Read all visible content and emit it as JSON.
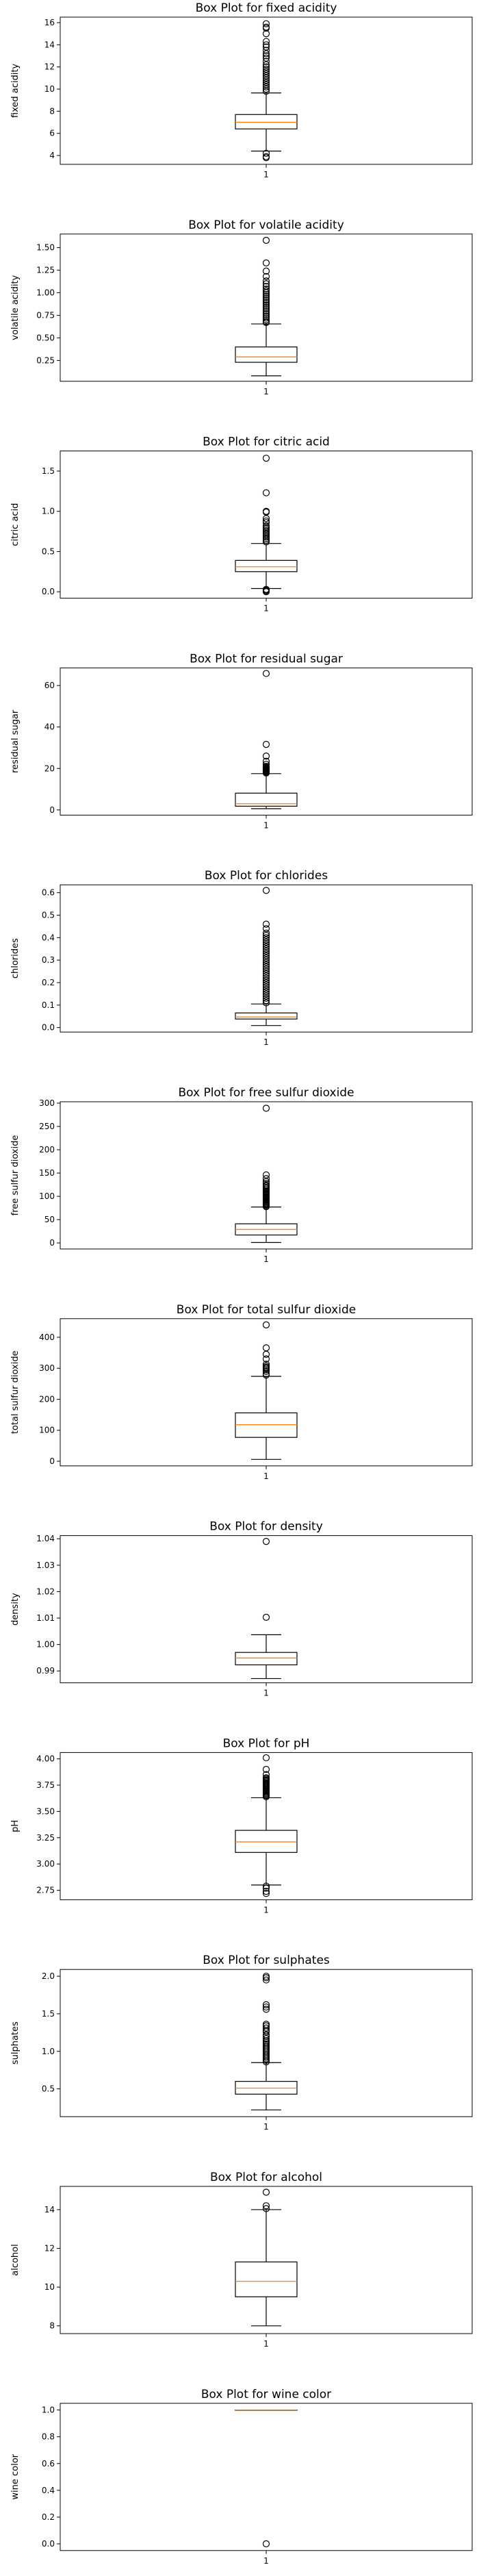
{
  "chart_data": [
    {
      "type": "box",
      "title": "Box Plot for fixed acidity",
      "ylabel": "fixed acidity",
      "xtick": "1",
      "ylim": [
        3.2,
        16.5
      ],
      "yticks": [
        4,
        6,
        8,
        10,
        12,
        14,
        16
      ],
      "yticklabels": [
        "4",
        "6",
        "8",
        "10",
        "12",
        "14",
        "16"
      ],
      "whisker_low": 4.4,
      "q1": 6.4,
      "median": 7.0,
      "q3": 7.7,
      "whisker_high": 9.65,
      "outliers": [
        3.8,
        3.9,
        4.2,
        9.8,
        10.0,
        10.2,
        10.4,
        10.6,
        10.8,
        11.0,
        11.2,
        11.4,
        11.6,
        11.8,
        12.0,
        12.2,
        12.5,
        12.8,
        13.0,
        13.2,
        13.5,
        13.8,
        14.0,
        14.3,
        15.0,
        15.5,
        15.6,
        15.9
      ]
    },
    {
      "type": "box",
      "title": "Box Plot for volatile acidity",
      "ylabel": "volatile acidity",
      "xtick": "1",
      "ylim": [
        0.02,
        1.65
      ],
      "yticks": [
        0.25,
        0.5,
        0.75,
        1.0,
        1.25,
        1.5
      ],
      "yticklabels": [
        "0.25",
        "0.50",
        "0.75",
        "1.00",
        "1.25",
        "1.50"
      ],
      "whisker_low": 0.08,
      "q1": 0.23,
      "median": 0.29,
      "q3": 0.4,
      "whisker_high": 0.655,
      "outliers": [
        0.67,
        0.68,
        0.7,
        0.72,
        0.74,
        0.76,
        0.78,
        0.8,
        0.82,
        0.84,
        0.86,
        0.88,
        0.9,
        0.92,
        0.94,
        0.96,
        0.98,
        1.0,
        1.02,
        1.04,
        1.07,
        1.1,
        1.13,
        1.18,
        1.24,
        1.33,
        1.58
      ]
    },
    {
      "type": "box",
      "title": "Box Plot for citric acid",
      "ylabel": "citric acid",
      "xtick": "1",
      "ylim": [
        -0.08,
        1.75
      ],
      "yticks": [
        0.0,
        0.5,
        1.0,
        1.5
      ],
      "yticklabels": [
        "0.0",
        "0.5",
        "1.0",
        "1.5"
      ],
      "whisker_low": 0.04,
      "q1": 0.25,
      "median": 0.31,
      "q3": 0.39,
      "whisker_high": 0.6,
      "outliers": [
        0.0,
        0.01,
        0.02,
        0.03,
        0.62,
        0.64,
        0.66,
        0.68,
        0.7,
        0.72,
        0.74,
        0.76,
        0.78,
        0.8,
        0.82,
        0.86,
        0.88,
        0.91,
        0.99,
        1.0,
        1.23,
        1.66
      ]
    },
    {
      "type": "box",
      "title": "Box Plot for residual sugar",
      "ylabel": "residual sugar",
      "xtick": "1",
      "ylim": [
        -2.5,
        68.5
      ],
      "yticks": [
        0,
        20,
        40,
        60
      ],
      "yticklabels": [
        "0",
        "20",
        "40",
        "60"
      ],
      "whisker_low": 0.6,
      "q1": 1.8,
      "median": 3.0,
      "q3": 8.1,
      "whisker_high": 17.5,
      "outliers": [
        17.8,
        18.0,
        18.2,
        18.5,
        18.8,
        19.0,
        19.3,
        19.5,
        19.8,
        20.0,
        20.3,
        20.7,
        21.0,
        22.0,
        23.5,
        26.0,
        31.6,
        65.8
      ]
    },
    {
      "type": "box",
      "title": "Box Plot for chlorides",
      "ylabel": "chlorides",
      "xtick": "1",
      "ylim": [
        -0.02,
        0.635
      ],
      "yticks": [
        0.0,
        0.1,
        0.2,
        0.3,
        0.4,
        0.5,
        0.6
      ],
      "yticklabels": [
        "0.0",
        "0.1",
        "0.2",
        "0.3",
        "0.4",
        "0.5",
        "0.6"
      ],
      "whisker_low": 0.009,
      "q1": 0.038,
      "median": 0.047,
      "q3": 0.065,
      "whisker_high": 0.105,
      "outliers": [
        0.11,
        0.12,
        0.13,
        0.14,
        0.15,
        0.16,
        0.17,
        0.18,
        0.19,
        0.2,
        0.21,
        0.22,
        0.23,
        0.24,
        0.25,
        0.26,
        0.27,
        0.28,
        0.29,
        0.3,
        0.31,
        0.32,
        0.33,
        0.34,
        0.35,
        0.36,
        0.37,
        0.38,
        0.39,
        0.4,
        0.41,
        0.42,
        0.44,
        0.46,
        0.61
      ]
    },
    {
      "type": "box",
      "title": "Box Plot for free sulfur dioxide",
      "ylabel": "free sulfur dioxide",
      "xtick": "1",
      "ylim": [
        -13,
        303
      ],
      "yticks": [
        0,
        50,
        100,
        150,
        200,
        250,
        300
      ],
      "yticklabels": [
        "0",
        "50",
        "100",
        "150",
        "200",
        "250",
        "300"
      ],
      "whisker_low": 1,
      "q1": 17,
      "median": 29,
      "q3": 41,
      "whisker_high": 77,
      "outliers": [
        78,
        80,
        82,
        84,
        86,
        88,
        90,
        92,
        94,
        96,
        98,
        100,
        102,
        104,
        106,
        108,
        110,
        112,
        115,
        118,
        122,
        124,
        128,
        132,
        138,
        146,
        289
      ]
    },
    {
      "type": "box",
      "title": "Box Plot for total sulfur dioxide",
      "ylabel": "total sulfur dioxide",
      "xtick": "1",
      "ylim": [
        -15,
        460
      ],
      "yticks": [
        0,
        100,
        200,
        300,
        400
      ],
      "yticklabels": [
        "0",
        "100",
        "200",
        "300",
        "400"
      ],
      "whisker_low": 6,
      "q1": 77,
      "median": 118,
      "q3": 156,
      "whisker_high": 274,
      "outliers": [
        278,
        282,
        290,
        295,
        300,
        303,
        307,
        313,
        330,
        345,
        366,
        440
      ]
    },
    {
      "type": "box",
      "title": "Box Plot for density",
      "ylabel": "density",
      "xtick": "1",
      "ylim": [
        0.9855,
        1.0412
      ],
      "yticks": [
        0.99,
        1.0,
        1.01,
        1.02,
        1.03,
        1.04
      ],
      "yticklabels": [
        "0.99",
        "1.00",
        "1.01",
        "1.02",
        "1.03",
        "1.04"
      ],
      "whisker_low": 0.9871,
      "q1": 0.9923,
      "median": 0.9949,
      "q3": 0.997,
      "whisker_high": 1.0037,
      "outliers": [
        1.0103,
        1.039
      ]
    },
    {
      "type": "box",
      "title": "Box Plot for pH",
      "ylabel": "pH",
      "xtick": "1",
      "ylim": [
        2.66,
        4.06
      ],
      "yticks": [
        2.75,
        3.0,
        3.25,
        3.5,
        3.75,
        4.0
      ],
      "yticklabels": [
        "2.75",
        "3.00",
        "3.25",
        "3.50",
        "3.75",
        "4.00"
      ],
      "whisker_low": 2.8,
      "q1": 3.11,
      "median": 3.21,
      "q3": 3.32,
      "whisker_high": 3.63,
      "outliers": [
        2.72,
        2.74,
        2.77,
        2.79,
        3.64,
        3.65,
        3.66,
        3.67,
        3.68,
        3.69,
        3.7,
        3.71,
        3.72,
        3.73,
        3.74,
        3.75,
        3.76,
        3.77,
        3.78,
        3.79,
        3.8,
        3.81,
        3.82,
        3.85,
        3.9,
        4.01
      ]
    },
    {
      "type": "box",
      "title": "Box Plot for sulphates",
      "ylabel": "sulphates",
      "xtick": "1",
      "ylim": [
        0.13,
        2.09
      ],
      "yticks": [
        0.5,
        1.0,
        1.5,
        2.0
      ],
      "yticklabels": [
        "0.5",
        "1.0",
        "1.5",
        "2.0"
      ],
      "whisker_low": 0.22,
      "q1": 0.43,
      "median": 0.51,
      "q3": 0.6,
      "whisker_high": 0.85,
      "outliers": [
        0.86,
        0.88,
        0.9,
        0.92,
        0.94,
        0.96,
        0.98,
        1.0,
        1.02,
        1.04,
        1.06,
        1.08,
        1.1,
        1.12,
        1.14,
        1.17,
        1.2,
        1.22,
        1.26,
        1.28,
        1.31,
        1.34,
        1.36,
        1.56,
        1.59,
        1.62,
        1.95,
        1.98,
        2.0
      ]
    },
    {
      "type": "box",
      "title": "Box Plot for alcohol",
      "ylabel": "alcohol",
      "xtick": "1",
      "ylim": [
        7.6,
        15.2
      ],
      "yticks": [
        8,
        10,
        12,
        14
      ],
      "yticklabels": [
        "8",
        "10",
        "12",
        "14"
      ],
      "whisker_low": 8.0,
      "q1": 9.5,
      "median": 10.3,
      "q3": 11.3,
      "whisker_high": 14.0,
      "outliers": [
        14.05,
        14.2,
        14.9
      ]
    },
    {
      "type": "box",
      "title": "Box Plot for wine color",
      "ylabel": "wine color",
      "xtick": "1",
      "ylim": [
        -0.05,
        1.05
      ],
      "yticks": [
        0.0,
        0.2,
        0.4,
        0.6,
        0.8,
        1.0
      ],
      "yticklabels": [
        "0.0",
        "0.2",
        "0.4",
        "0.6",
        "0.8",
        "1.0"
      ],
      "whisker_low": 1.0,
      "q1": 1.0,
      "median": 1.0,
      "q3": 1.0,
      "whisker_high": 1.0,
      "outliers": [
        0.0
      ]
    }
  ],
  "style": {
    "box_color": "#000000",
    "median_color": "#ff7f0e",
    "outlier_color": "#000000",
    "axes_color": "#000000",
    "background": "#ffffff"
  }
}
